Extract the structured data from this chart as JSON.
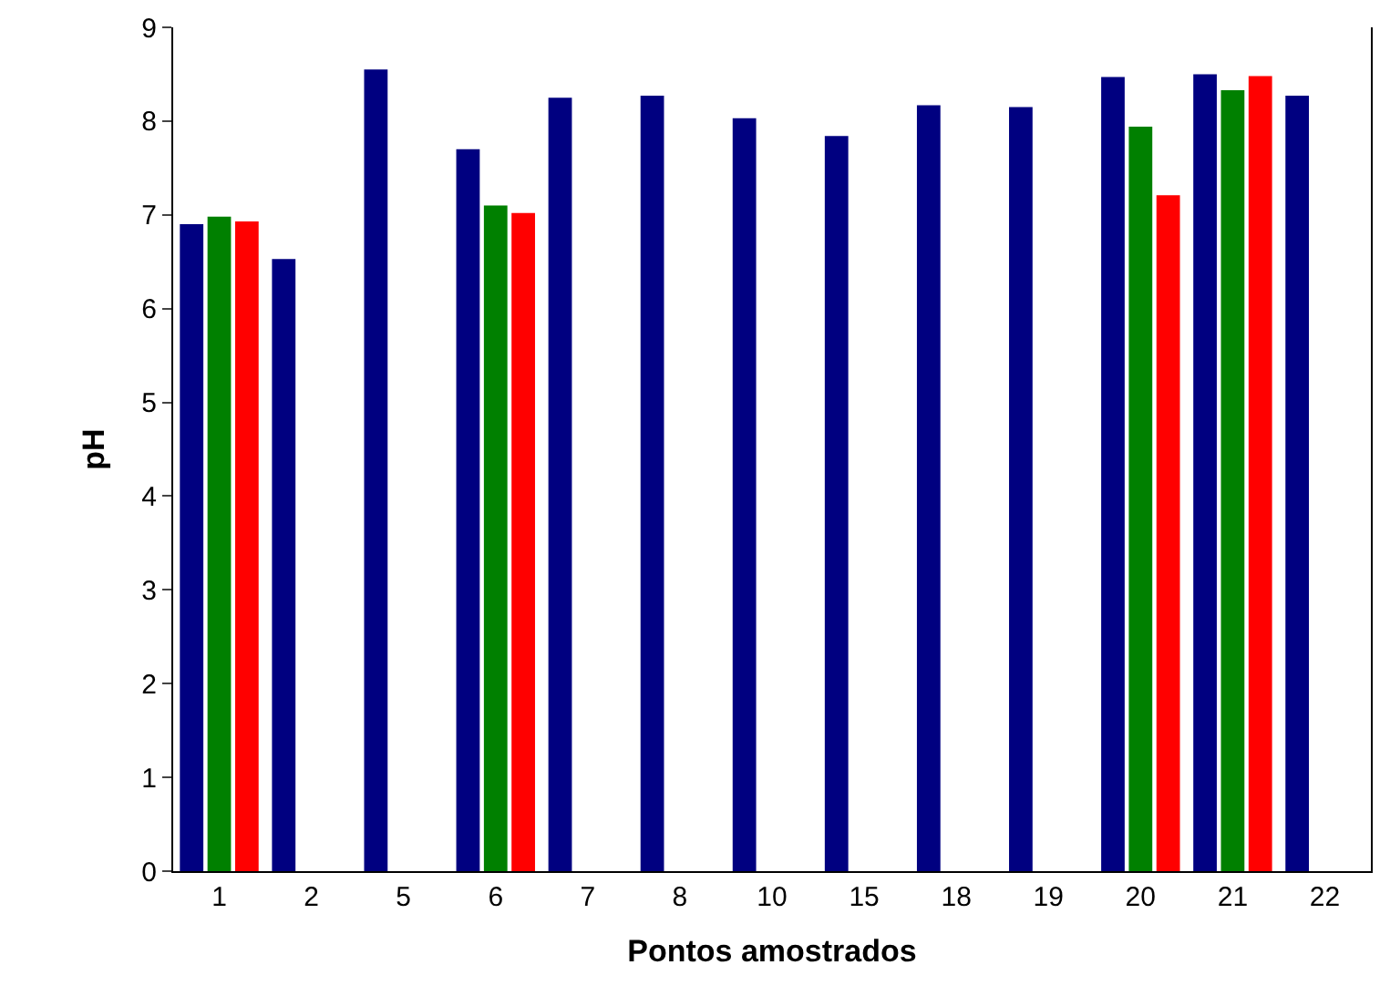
{
  "chart_data": {
    "type": "bar",
    "xlabel": "Pontos amostrados",
    "ylabel": "pH",
    "categories": [
      "1",
      "2",
      "5",
      "6",
      "7",
      "8",
      "10",
      "15",
      "18",
      "19",
      "20",
      "21",
      "22"
    ],
    "series": [
      {
        "color": "#000080",
        "values": [
          6.9,
          6.53,
          8.55,
          7.7,
          8.25,
          8.27,
          8.03,
          7.84,
          8.17,
          8.15,
          8.47,
          8.5,
          8.27
        ]
      },
      {
        "color": "#008000",
        "values": [
          6.98,
          null,
          null,
          7.1,
          null,
          null,
          null,
          null,
          null,
          null,
          7.94,
          8.33,
          null
        ]
      },
      {
        "color": "#ff0000",
        "values": [
          6.93,
          null,
          null,
          7.02,
          null,
          null,
          null,
          null,
          null,
          null,
          7.21,
          8.48,
          null
        ]
      }
    ],
    "ylim": [
      0,
      9
    ],
    "yticks": [
      0,
      1,
      2,
      3,
      4,
      5,
      6,
      7,
      8,
      9
    ]
  }
}
